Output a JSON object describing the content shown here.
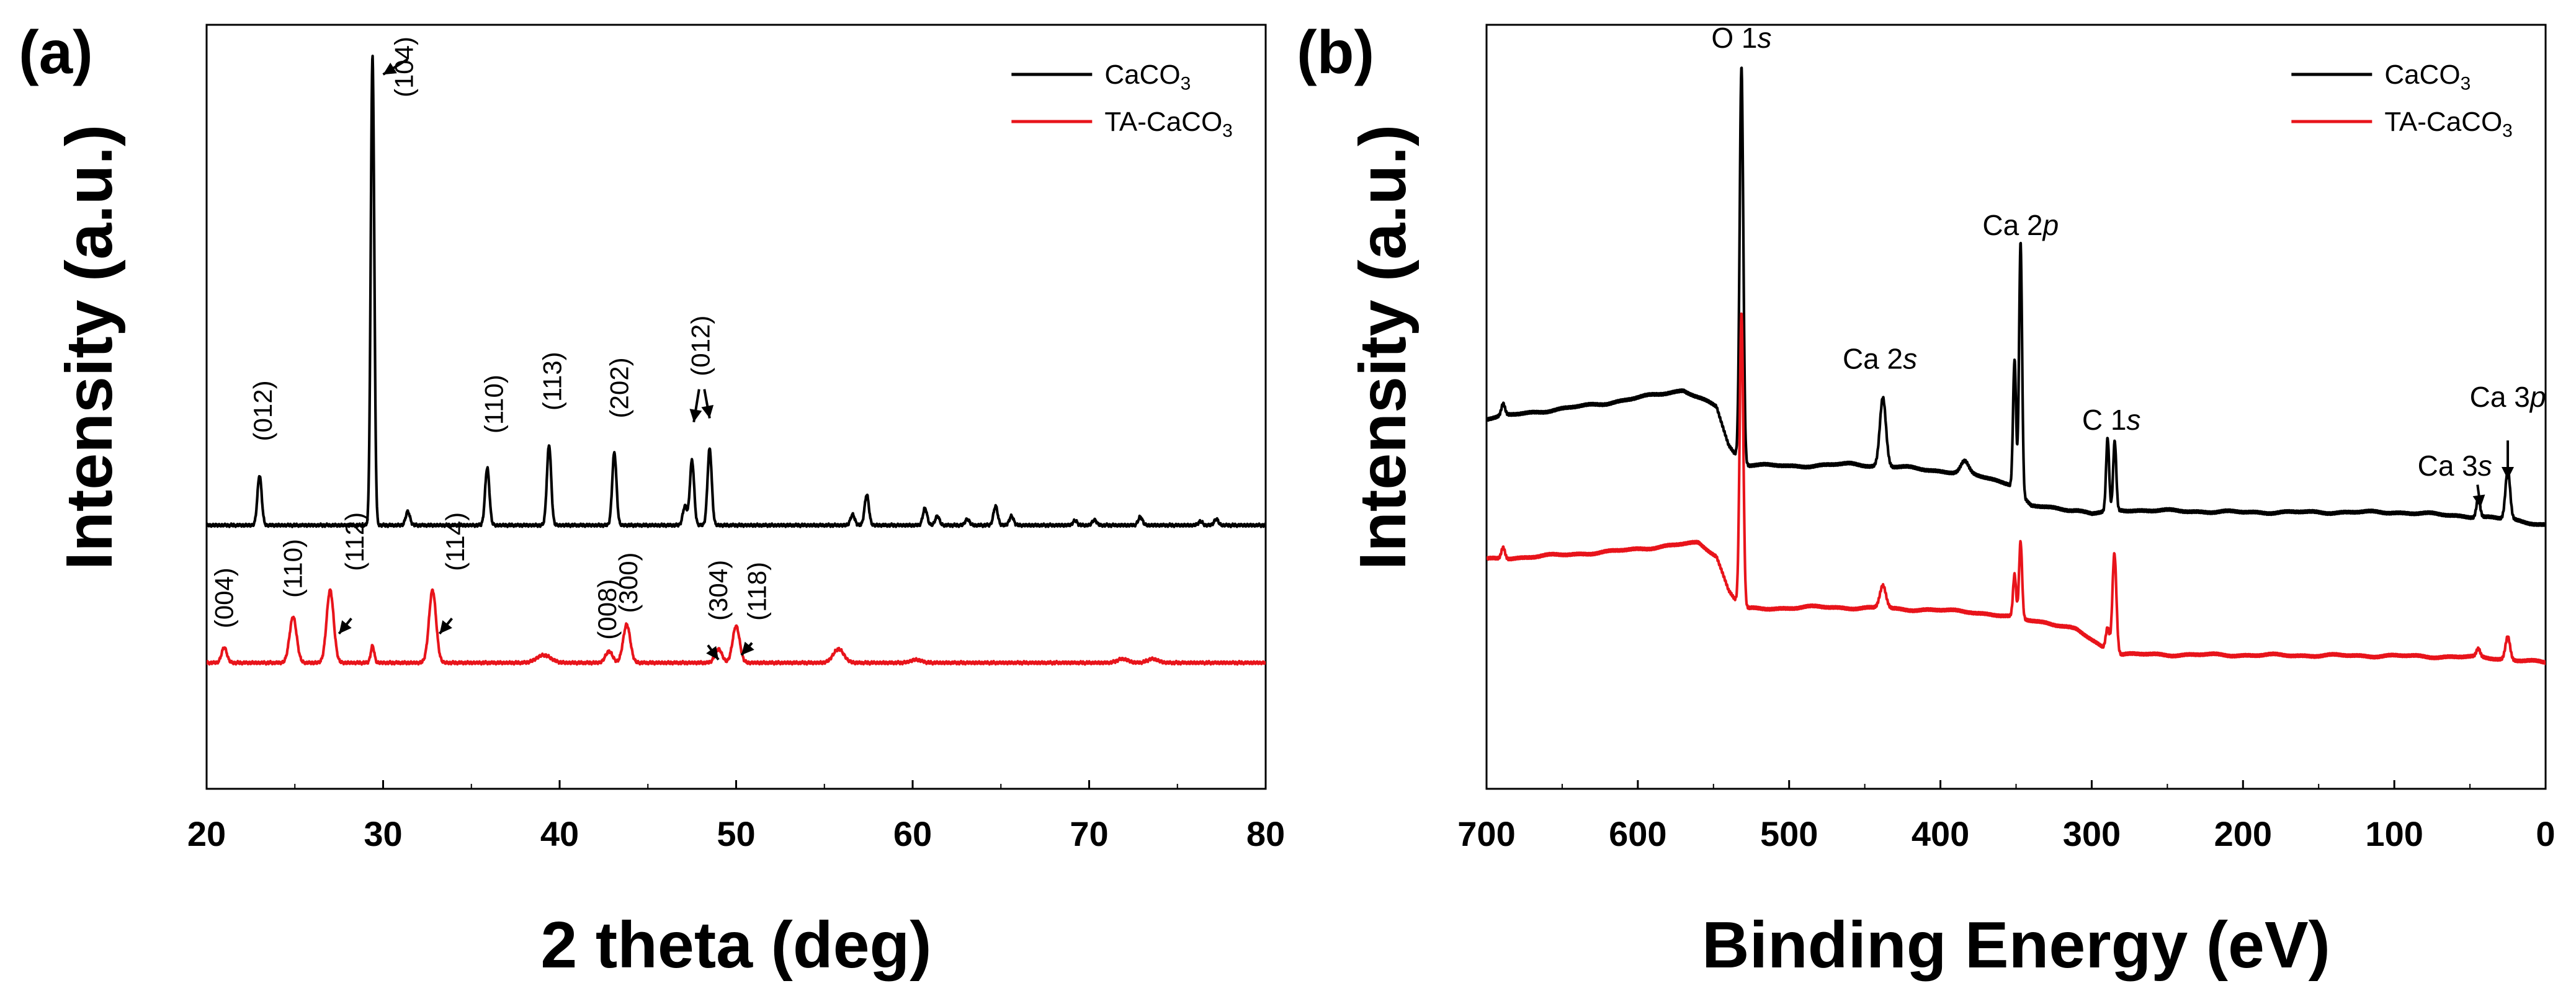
{
  "chart_data": [
    {
      "panel_label": "(a)",
      "type": "line",
      "title": "",
      "xlabel": "2 theta (deg)",
      "ylabel": "Intensity (a.u.)",
      "xlim": [
        20,
        80
      ],
      "ylim": [
        0,
        100
      ],
      "xticks": [
        20,
        30,
        40,
        50,
        60,
        70,
        80
      ],
      "x_reversed": false,
      "legend_position": "top-right",
      "colors": {
        "CaCO3": "#000000",
        "TA-CaCO3": "#e8141b"
      },
      "series": [
        {
          "name": "CaCO3",
          "color": "#000000",
          "baseline": 34.5,
          "peaks": [
            {
              "x": 23.0,
              "h": 6.5,
              "w": 0.12
            },
            {
              "x": 29.4,
              "h": 61.5,
              "w": 0.1
            },
            {
              "x": 31.4,
              "h": 1.8,
              "w": 0.12
            },
            {
              "x": 35.9,
              "h": 7.5,
              "w": 0.12
            },
            {
              "x": 39.4,
              "h": 10.5,
              "w": 0.12
            },
            {
              "x": 43.1,
              "h": 9.5,
              "w": 0.12
            },
            {
              "x": 47.1,
              "h": 2.5,
              "w": 0.12
            },
            {
              "x": 47.5,
              "h": 8.5,
              "w": 0.12
            },
            {
              "x": 48.5,
              "h": 10.0,
              "w": 0.12
            },
            {
              "x": 56.6,
              "h": 1.4,
              "w": 0.12
            },
            {
              "x": 57.4,
              "h": 4.0,
              "w": 0.12
            },
            {
              "x": 60.7,
              "h": 2.2,
              "w": 0.12
            },
            {
              "x": 61.4,
              "h": 1.2,
              "w": 0.12
            },
            {
              "x": 63.1,
              "h": 0.8,
              "w": 0.12
            },
            {
              "x": 64.7,
              "h": 2.5,
              "w": 0.12
            },
            {
              "x": 65.6,
              "h": 1.2,
              "w": 0.12
            },
            {
              "x": 69.2,
              "h": 0.6,
              "w": 0.12
            },
            {
              "x": 70.3,
              "h": 0.7,
              "w": 0.12
            },
            {
              "x": 72.9,
              "h": 1.1,
              "w": 0.12
            },
            {
              "x": 76.3,
              "h": 0.5,
              "w": 0.12
            },
            {
              "x": 77.2,
              "h": 0.8,
              "w": 0.12
            }
          ]
        },
        {
          "name": "TA-CaCO3",
          "color": "#e8141b",
          "baseline": 16.5,
          "peaks": [
            {
              "x": 21.0,
              "h": 2.0,
              "w": 0.15
            },
            {
              "x": 24.9,
              "h": 6.0,
              "w": 0.2
            },
            {
              "x": 27.0,
              "h": 9.5,
              "w": 0.2
            },
            {
              "x": 29.4,
              "h": 2.2,
              "w": 0.1
            },
            {
              "x": 32.8,
              "h": 9.5,
              "w": 0.2
            },
            {
              "x": 39.1,
              "h": 1.0,
              "w": 0.4
            },
            {
              "x": 42.8,
              "h": 1.5,
              "w": 0.2
            },
            {
              "x": 43.8,
              "h": 5.0,
              "w": 0.2
            },
            {
              "x": 49.0,
              "h": 1.8,
              "w": 0.2
            },
            {
              "x": 50.0,
              "h": 4.8,
              "w": 0.2
            },
            {
              "x": 55.8,
              "h": 1.8,
              "w": 0.3
            },
            {
              "x": 60.2,
              "h": 0.4,
              "w": 0.3
            },
            {
              "x": 71.9,
              "h": 0.5,
              "w": 0.3
            },
            {
              "x": 73.6,
              "h": 0.5,
              "w": 0.3
            }
          ]
        }
      ],
      "annotations": [
        {
          "text": "(104)",
          "x": 31.2,
          "y": 90.5,
          "rotate": true,
          "series": "CaCO3"
        },
        {
          "text": "(012)",
          "x": 23.2,
          "y": 45.5,
          "rotate": true,
          "series": "CaCO3"
        },
        {
          "text": "(110)",
          "x": 36.3,
          "y": 46.5,
          "rotate": true,
          "series": "CaCO3"
        },
        {
          "text": "(113)",
          "x": 39.6,
          "y": 49.5,
          "rotate": true,
          "series": "CaCO3"
        },
        {
          "text": "(202)",
          "x": 43.4,
          "y": 48.5,
          "rotate": true,
          "series": "CaCO3"
        },
        {
          "text": "(012)",
          "x": 48.0,
          "y": 54.0,
          "rotate": true,
          "series": "CaCO3"
        },
        {
          "text": "(004)",
          "x": 21.0,
          "y": 21.0,
          "rotate": true,
          "series": "TA-CaCO3"
        },
        {
          "text": "(110)",
          "x": 24.9,
          "y": 25.0,
          "rotate": true,
          "series": "TA-CaCO3"
        },
        {
          "text": "(112)",
          "x": 28.4,
          "y": 28.5,
          "rotate": true,
          "series": "TA-CaCO3"
        },
        {
          "text": "(114)",
          "x": 34.1,
          "y": 28.5,
          "rotate": true,
          "series": "TA-CaCO3"
        },
        {
          "text": "(008)",
          "x": 42.7,
          "y": 19.5,
          "rotate": true,
          "series": "TA-CaCO3"
        },
        {
          "text": "(300)",
          "x": 43.9,
          "y": 23.0,
          "rotate": true,
          "series": "TA-CaCO3"
        },
        {
          "text": "(304)",
          "x": 49.0,
          "y": 22.0,
          "rotate": true,
          "series": "TA-CaCO3"
        },
        {
          "text": "(118)",
          "x": 51.2,
          "y": 22.0,
          "rotate": true,
          "series": "TA-CaCO3"
        }
      ]
    },
    {
      "panel_label": "(b)",
      "type": "line",
      "title": "",
      "xlabel": "Binding Energy (eV)",
      "ylabel": "Intensity (a.u.)",
      "xlim": [
        700,
        0
      ],
      "ylim": [
        0,
        100
      ],
      "xticks": [
        700,
        600,
        500,
        400,
        300,
        200,
        100,
        0
      ],
      "x_reversed": true,
      "legend_position": "top-right",
      "colors": {
        "CaCO3": "#000000",
        "TA-CaCO3": "#e8141b"
      },
      "series": [
        {
          "name": "CaCO3",
          "color": "#000000",
          "baseline_points": [
            [
              700,
              48.5
            ],
            [
              620,
              50.5
            ],
            [
              570,
              52.2
            ],
            [
              548,
              50.0
            ],
            [
              540,
              45.0
            ],
            [
              531,
              42.5
            ],
            [
              500,
              42.2
            ],
            [
              460,
              42.5
            ],
            [
              420,
              42.0
            ],
            [
              380,
              41.2
            ],
            [
              355,
              40.0
            ],
            [
              340,
              37.0
            ],
            [
              310,
              36.5
            ],
            [
              300,
              36.0
            ],
            [
              280,
              36.5
            ],
            [
              200,
              36.2
            ],
            [
              100,
              36.2
            ],
            [
              60,
              35.8
            ],
            [
              20,
              35.2
            ],
            [
              0,
              34.5
            ]
          ],
          "peaks": [
            {
              "x": 531.5,
              "h": 52.0,
              "w": 1.2
            },
            {
              "x": 689.0,
              "h": 1.5,
              "w": 1.2
            },
            {
              "x": 438.0,
              "h": 9.0,
              "w": 2.0
            },
            {
              "x": 384.0,
              "h": 1.5,
              "w": 2.5
            },
            {
              "x": 351.0,
              "h": 17.0,
              "w": 1.0
            },
            {
              "x": 347.0,
              "h": 33.0,
              "w": 1.0
            },
            {
              "x": 289.5,
              "h": 9.5,
              "w": 1.0
            },
            {
              "x": 284.8,
              "h": 9.0,
              "w": 1.0
            },
            {
              "x": 44.5,
              "h": 2.5,
              "w": 1.2
            },
            {
              "x": 25.0,
              "h": 6.5,
              "w": 1.5
            }
          ]
        },
        {
          "name": "TA-CaCO3",
          "color": "#e8141b",
          "baseline_points": [
            [
              700,
              30.0
            ],
            [
              620,
              31.0
            ],
            [
              560,
              32.2
            ],
            [
              548,
              30.5
            ],
            [
              540,
              26.0
            ],
            [
              531,
              23.5
            ],
            [
              480,
              23.8
            ],
            [
              420,
              23.5
            ],
            [
              380,
              23.2
            ],
            [
              355,
              22.5
            ],
            [
              330,
              21.8
            ],
            [
              310,
              20.8
            ],
            [
              296,
              19.0
            ],
            [
              290,
              18.2
            ],
            [
              280,
              17.6
            ],
            [
              200,
              17.5
            ],
            [
              100,
              17.4
            ],
            [
              40,
              17.2
            ],
            [
              0,
              16.5
            ]
          ],
          "peaks": [
            {
              "x": 531.5,
              "h": 38.5,
              "w": 1.2
            },
            {
              "x": 689.0,
              "h": 1.5,
              "w": 1.2
            },
            {
              "x": 438.0,
              "h": 3.0,
              "w": 2.0
            },
            {
              "x": 351.0,
              "h": 5.5,
              "w": 1.0
            },
            {
              "x": 347.0,
              "h": 10.0,
              "w": 1.0
            },
            {
              "x": 289.5,
              "h": 3.0,
              "w": 1.2
            },
            {
              "x": 285.0,
              "h": 13.0,
              "w": 1.3
            },
            {
              "x": 44.5,
              "h": 1.0,
              "w": 1.2
            },
            {
              "x": 25.0,
              "h": 3.0,
              "w": 1.5
            }
          ]
        }
      ],
      "annotations": [
        {
          "text": "O 1s",
          "x": 531.5,
          "y": 97.0
        },
        {
          "text": "Ca 2s",
          "x": 440.0,
          "y": 55.0
        },
        {
          "text": "Ca 2p",
          "x": 347.0,
          "y": 72.5
        },
        {
          "text": "C 1s",
          "x": 287.0,
          "y": 47.0
        },
        {
          "text": "Ca 3s",
          "x": 60.0,
          "y": 41.0
        },
        {
          "text": "Ca 3p",
          "x": 25.0,
          "y": 50.0
        }
      ]
    }
  ]
}
